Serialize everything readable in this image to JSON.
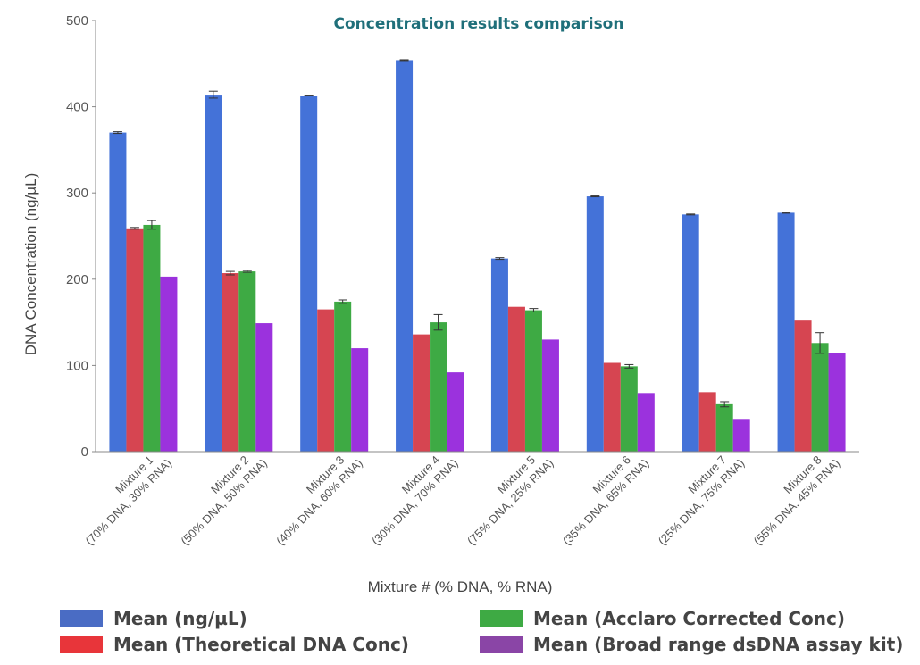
{
  "chart_data": {
    "type": "bar",
    "title": "Concentration results comparison",
    "xlabel": "Mixture # (% DNA, % RNA)",
    "ylabel": "DNA Concentration (ng/µL)",
    "ylim": [
      0,
      500
    ],
    "yticks": [
      0,
      100,
      200,
      300,
      400,
      500
    ],
    "categories": [
      [
        "Mixture 1",
        "(70% DNA, 30% RNA)"
      ],
      [
        "Mixture 2",
        "(50% DNA, 50% RNA)"
      ],
      [
        "Mixture 3",
        "(40% DNA, 60% RNA)"
      ],
      [
        "Mixture 4",
        "(30% DNA, 70% RNA)"
      ],
      [
        "Mixture 5",
        "(75% DNA, 25% RNA)"
      ],
      [
        "Mixture 6",
        "(35% DNA, 65% RNA)"
      ],
      [
        "Mixture 7",
        "(25% DNA, 75% RNA)"
      ],
      [
        "Mixture 8",
        "(55% DNA, 45% RNA)"
      ]
    ],
    "series": [
      {
        "name": "Mean (ng/µL)",
        "color": "#4472d8",
        "values": [
          370,
          414,
          413,
          454,
          224,
          296,
          275,
          277
        ],
        "errors": [
          1,
          4,
          0.5,
          0.5,
          1,
          0.5,
          0.5,
          0.5
        ]
      },
      {
        "name": "Mean (Theoretical DNA Conc)",
        "color": "#d64551",
        "values": [
          259,
          207,
          165,
          136,
          168,
          103,
          69,
          152
        ],
        "errors": [
          1,
          2,
          0,
          0,
          0,
          0,
          0,
          0
        ]
      },
      {
        "name": "Mean (Acclaro Corrected Conc)",
        "color": "#3eaa44",
        "values": [
          263,
          209,
          174,
          150,
          164,
          99,
          55,
          126
        ],
        "errors": [
          5,
          1,
          2,
          9,
          2,
          2,
          3,
          12
        ]
      },
      {
        "name": "Mean (Broad range dsDNA assay kit)",
        "color": "#9b32dd",
        "values": [
          203,
          149,
          120,
          92,
          130,
          68,
          38,
          114
        ],
        "errors": [
          0,
          0,
          0,
          0,
          0,
          0,
          0,
          0
        ]
      }
    ],
    "legend": {
      "placement": "bottom",
      "items": [
        {
          "label": "Mean (ng/µL)",
          "swatch": "#4a6cc4"
        },
        {
          "label": "Mean (Acclaro Corrected Conc)",
          "swatch": "#3eaa44"
        },
        {
          "label": "Mean (Theoretical DNA Conc)",
          "swatch": "#e8353a"
        },
        {
          "label": "Mean (Broad range dsDNA assay kit)",
          "swatch": "#8a45a6"
        }
      ]
    }
  }
}
